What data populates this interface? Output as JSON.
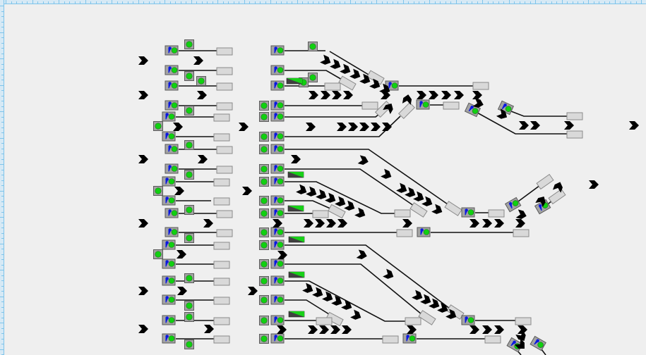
{
  "canvas": {
    "background": "#efefef"
  },
  "rulers": {
    "color": "#7fc4ea",
    "fill": "#d6e9f5"
  },
  "colors": {
    "track": "#111111",
    "signal_body": "#a4a4a4",
    "signal_border": "#5a5a5a",
    "lamp_green": "#10d010",
    "pin_blue": "#0a18e0",
    "track_section_fill": "#d9d9d9",
    "track_section_border": "#8a8a8a",
    "chevron": "#000000",
    "ramp_dark": "#404040",
    "ramp_green": "#18d018"
  },
  "icons": [
    "signal-icon",
    "lamp-icon",
    "direction-chevron-icon",
    "track-section-icon",
    "route-indicator-icon"
  ]
}
